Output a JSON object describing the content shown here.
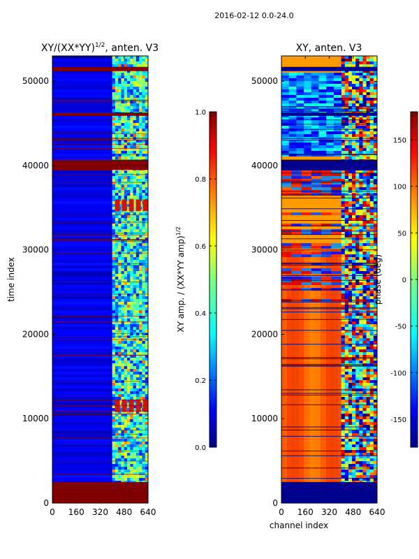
{
  "figure": {
    "suptitle": "2016-02-12 0.0-24.0"
  },
  "chart_data": [
    {
      "type": "heatmap",
      "title": "XY/(XX*YY)",
      "title_sup": "1/2",
      "title_suffix": ", anten. V3",
      "xlabel": "",
      "ylabel": "time index",
      "xlim": [
        0,
        640
      ],
      "ylim": [
        0,
        53000
      ],
      "xticks": [
        "0",
        "160",
        "320",
        "480",
        "640"
      ],
      "yticks": [
        "0",
        "10000",
        "20000",
        "30000",
        "40000",
        "50000"
      ],
      "colormap": "jet",
      "colorbar": {
        "label": "XY amp. / (XX*YY amp)",
        "label_sup": "1/2",
        "range": [
          0,
          1
        ],
        "ticks": [
          "0.0",
          "0.2",
          "0.4",
          "0.6",
          "0.8",
          "1.0"
        ]
      },
      "flagged_time_bands": [
        [
          0,
          2500
        ],
        [
          39500,
          40700
        ],
        [
          45900,
          46300
        ],
        [
          51200,
          51700
        ]
      ],
      "active_channel_range": [
        400,
        640
      ],
      "background_value": 0.1
    },
    {
      "type": "heatmap",
      "title": "XY, anten. V3",
      "xlabel": "channel index",
      "ylabel": "",
      "xlim": [
        0,
        640
      ],
      "ylim": [
        0,
        53000
      ],
      "xticks": [
        "0",
        "160",
        "320",
        "480",
        "640"
      ],
      "yticks": [
        "0",
        "10000",
        "20000",
        "30000",
        "40000",
        "50000"
      ],
      "colormap": "jet",
      "colorbar": {
        "label": "phase (deg)",
        "range": [
          -180,
          180
        ],
        "ticks": [
          "-150",
          "-100",
          "-50",
          "0",
          "50",
          "100",
          "150"
        ]
      },
      "background_value_deg": 120
    }
  ],
  "colors": {
    "jet": [
      "#00007f",
      "#0000ff",
      "#007fff",
      "#00ffff",
      "#7fff7f",
      "#ffff00",
      "#ff7f00",
      "#ff0000",
      "#7f0000"
    ]
  }
}
